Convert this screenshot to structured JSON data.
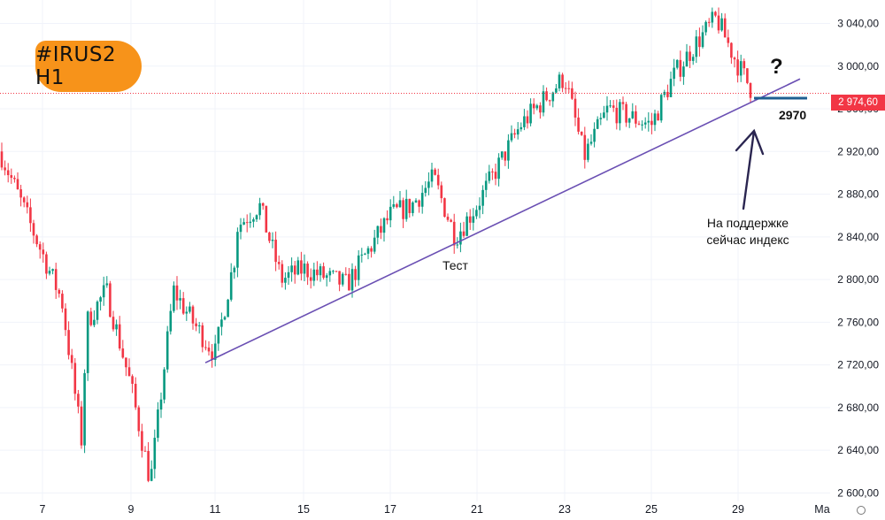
{
  "header": {
    "ticker": "#IRUS2 H1"
  },
  "annotations": {
    "question": "?",
    "test": "Тест",
    "support": [
      "На поддержке",
      "сейчас индекс"
    ],
    "level": "2970"
  },
  "current_price": "2 974,60",
  "colors": {
    "up": "#089981",
    "down": "#f23645",
    "trend": "#6a4fb3",
    "badge": "#f7931a",
    "level": "#1f5f91",
    "arrow": "#2a2550"
  },
  "icons": [
    "settings-icon"
  ],
  "chart_data": {
    "type": "candlestick",
    "title": "",
    "x_ticks": [
      "7",
      "9",
      "11",
      "15",
      "17",
      "21",
      "23",
      "25",
      "29",
      "Ма"
    ],
    "y_ticks": [
      "3 040,00",
      "3 000,00",
      "2 960,00",
      "2 920,00",
      "2 880,00",
      "2 840,00",
      "2 800,00",
      "2 760,00",
      "2 720,00",
      "2 680,00",
      "2 640,00",
      "2 600,00"
    ],
    "ylim": [
      2592,
      3062
    ],
    "key_closes": [
      {
        "x": "7",
        "y": 2920
      },
      {
        "x": "7",
        "y": 2780
      },
      {
        "x": "7",
        "y": 2650
      },
      {
        "x": "8",
        "y": 2760
      },
      {
        "x": "8",
        "y": 2790
      },
      {
        "x": "9",
        "y": 2700
      },
      {
        "x": "9",
        "y": 2610
      },
      {
        "x": "10",
        "y": 2790
      },
      {
        "x": "10",
        "y": 2760
      },
      {
        "x": "11",
        "y": 2730
      },
      {
        "x": "11",
        "y": 2820
      },
      {
        "x": "12",
        "y": 2850
      },
      {
        "x": "13",
        "y": 2870
      },
      {
        "x": "14",
        "y": 2800
      },
      {
        "x": "15",
        "y": 2810
      },
      {
        "x": "16",
        "y": 2795
      },
      {
        "x": "17",
        "y": 2860
      },
      {
        "x": "18",
        "y": 2870
      },
      {
        "x": "19",
        "y": 2895
      },
      {
        "x": "20",
        "y": 2840
      },
      {
        "x": "21",
        "y": 2870
      },
      {
        "x": "22",
        "y": 2945
      },
      {
        "x": "23",
        "y": 2990
      },
      {
        "x": "23",
        "y": 2915
      },
      {
        "x": "24",
        "y": 2960
      },
      {
        "x": "25",
        "y": 2945
      },
      {
        "x": "26",
        "y": 2990
      },
      {
        "x": "27",
        "y": 3020
      },
      {
        "x": "28",
        "y": 3045
      },
      {
        "x": "28",
        "y": 3005
      },
      {
        "x": "29",
        "y": 2974.6
      }
    ],
    "trendline": {
      "from": {
        "x": "10",
        "y": 2722
      },
      "to": {
        "x": "30",
        "y": 2988
      }
    },
    "horizontal_level": 2970
  }
}
